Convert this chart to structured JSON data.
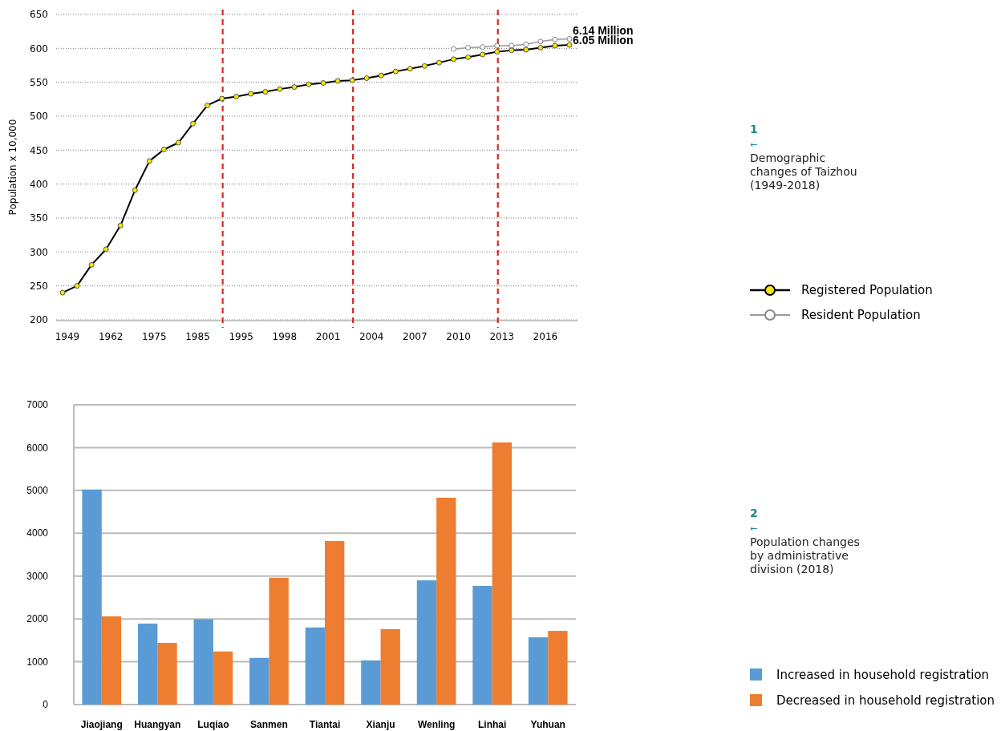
{
  "chart_data": [
    {
      "type": "line",
      "ylabel": "Population x 10,000",
      "categories": [
        "1949",
        null,
        null,
        "1962",
        null,
        null,
        "1975",
        null,
        null,
        "1985",
        null,
        null,
        "1995",
        null,
        null,
        "1998",
        null,
        null,
        "2001",
        null,
        null,
        "2004",
        null,
        null,
        "2007",
        null,
        null,
        "2010",
        null,
        null,
        "2013",
        null,
        null,
        "2016",
        null,
        null
      ],
      "series": [
        {
          "name": "Registered Population",
          "color": "#000000",
          "values": [
            240,
            250,
            281,
            304,
            339,
            391,
            434,
            451,
            461,
            489,
            516,
            526,
            529,
            533,
            536,
            540,
            543,
            547,
            549,
            552,
            553,
            556,
            560,
            566,
            570,
            574,
            579,
            584,
            587,
            591,
            595,
            597,
            598,
            601,
            604,
            605
          ]
        },
        {
          "name": "Resident Population",
          "color": "#999999",
          "values": [
            null,
            null,
            null,
            null,
            null,
            null,
            null,
            null,
            null,
            null,
            null,
            null,
            null,
            null,
            null,
            null,
            null,
            null,
            null,
            null,
            null,
            null,
            null,
            null,
            null,
            null,
            null,
            599,
            601,
            602,
            604,
            604,
            606,
            610,
            613,
            614
          ]
        }
      ],
      "ylim": [
        200,
        650
      ],
      "yticks": [
        200,
        250,
        300,
        350,
        400,
        450,
        500,
        550,
        600,
        650
      ],
      "grid": "y",
      "marker": "circle",
      "line_style": "solid",
      "legend": "right",
      "annotations": [
        "6.14 Million",
        "6.05 Million",
        "1",
        "←",
        "Demographic changes of Taizhou (1949-2018)"
      ]
    },
    {
      "type": "bar",
      "categories": [
        "Jiaojiang",
        "Huangyan",
        "Luqiao",
        "Sanmen",
        "Tiantai",
        "Xianju",
        "Wenling",
        "Linhai",
        "Yuhuan"
      ],
      "series": [
        {
          "name": "Increased in household registration",
          "color": "#5b9bd5",
          "values": [
            5020,
            1890,
            1990,
            1090,
            1800,
            1030,
            2900,
            2770,
            1570
          ]
        },
        {
          "name": "Decreased in household registration",
          "color": "#ed7d31",
          "values": [
            2060,
            1440,
            1240,
            2960,
            3820,
            1760,
            4830,
            6120,
            1720
          ]
        }
      ],
      "ylim": [
        0,
        7000
      ],
      "yticks": [
        0,
        1000,
        2000,
        3000,
        4000,
        5000,
        6000,
        7000
      ],
      "grid": "y",
      "legend": "bottom right",
      "annotations": [
        "2",
        "←",
        "Population changes by administrative division (2018)"
      ]
    }
  ]
}
